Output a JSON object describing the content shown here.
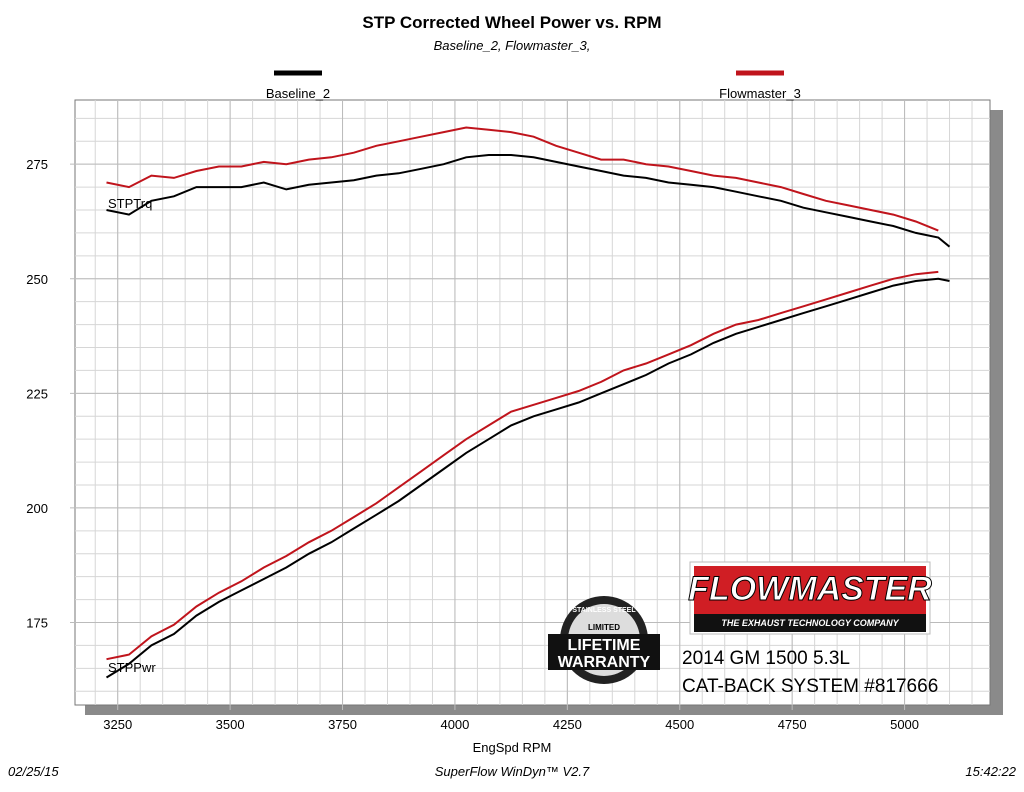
{
  "chart_data": {
    "type": "line",
    "title": "STP Corrected Wheel Power vs. RPM",
    "subtitle": "Baseline_2, Flowmaster_3,",
    "x_label": "EngSpd  RPM",
    "annotations": [
      "STPTrq",
      "STPPwr"
    ],
    "x": [
      3225,
      3275,
      3325,
      3375,
      3425,
      3475,
      3525,
      3575,
      3625,
      3675,
      3725,
      3775,
      3825,
      3875,
      3925,
      3975,
      4025,
      4075,
      4125,
      4175,
      4225,
      4275,
      4325,
      4375,
      4425,
      4475,
      4525,
      4575,
      4625,
      4675,
      4725,
      4775,
      4825,
      4875,
      4925,
      4975,
      5025,
      5075,
      5100
    ],
    "series": [
      {
        "name": "Baseline_2",
        "color": "#000000",
        "torque": [
          265,
          264,
          267,
          268,
          270,
          270,
          270,
          271,
          269.5,
          270.5,
          271,
          271.5,
          272.5,
          273,
          274,
          275,
          276.5,
          277,
          277,
          276.5,
          275.5,
          274.5,
          273.5,
          272.5,
          272,
          271,
          270.5,
          270,
          269,
          268,
          267,
          265.5,
          264.5,
          263.5,
          262.5,
          261.5,
          260,
          259,
          257
        ],
        "power": [
          163,
          166,
          170,
          172.5,
          176.5,
          179.5,
          182,
          184.5,
          187,
          190,
          192.5,
          195.5,
          198.5,
          201.5,
          205,
          208.5,
          212,
          215,
          218,
          220,
          221.5,
          223,
          225,
          227,
          229,
          231.5,
          233.5,
          236,
          238,
          239.5,
          241,
          242.5,
          244,
          245.5,
          247,
          248.5,
          249.5,
          250,
          249.5
        ]
      },
      {
        "name": "Flowmaster_3",
        "color": "#c0141c",
        "torque": [
          271,
          270,
          272.5,
          272,
          273.5,
          274.5,
          274.5,
          275.5,
          275,
          276,
          276.5,
          277.5,
          279,
          280,
          281,
          282,
          283,
          282.5,
          282,
          281,
          279,
          277.5,
          276,
          276,
          275,
          274.5,
          273.5,
          272.5,
          272,
          271,
          270,
          268.5,
          267,
          266,
          265,
          264,
          262.5,
          260.5,
          null
        ],
        "power": [
          167,
          168,
          172,
          174.5,
          178.5,
          181.5,
          184,
          187,
          189.5,
          192.5,
          195,
          198,
          201,
          204.5,
          208,
          211.5,
          215,
          218,
          221,
          222.5,
          224,
          225.5,
          227.5,
          230,
          231.5,
          233.5,
          235.5,
          238,
          240,
          241,
          242.5,
          244,
          245.5,
          247,
          248.5,
          250,
          251,
          251.5,
          null
        ]
      }
    ],
    "xlim": [
      3155,
      5190
    ],
    "xticks": [
      3250,
      3500,
      3750,
      4000,
      4250,
      4500,
      4750,
      5000
    ],
    "ylim": [
      157,
      289
    ],
    "yticks": [
      175,
      200,
      225,
      250,
      275
    ],
    "grid": true,
    "logo": {
      "brand": "FLOWMASTER",
      "tagline": "THE EXHAUST TECHNOLOGY COMPANY",
      "badge": [
        "STAINLESS STEEL",
        "LIMITED",
        "LIFETIME",
        "WARRANTY"
      ]
    },
    "product": [
      "2014 GM 1500 5.3L",
      "CAT-BACK SYSTEM #817666"
    ],
    "footer": {
      "date": "02/25/15",
      "software": "SuperFlow WinDyn™ V2.7",
      "time": "15:42:22"
    }
  }
}
